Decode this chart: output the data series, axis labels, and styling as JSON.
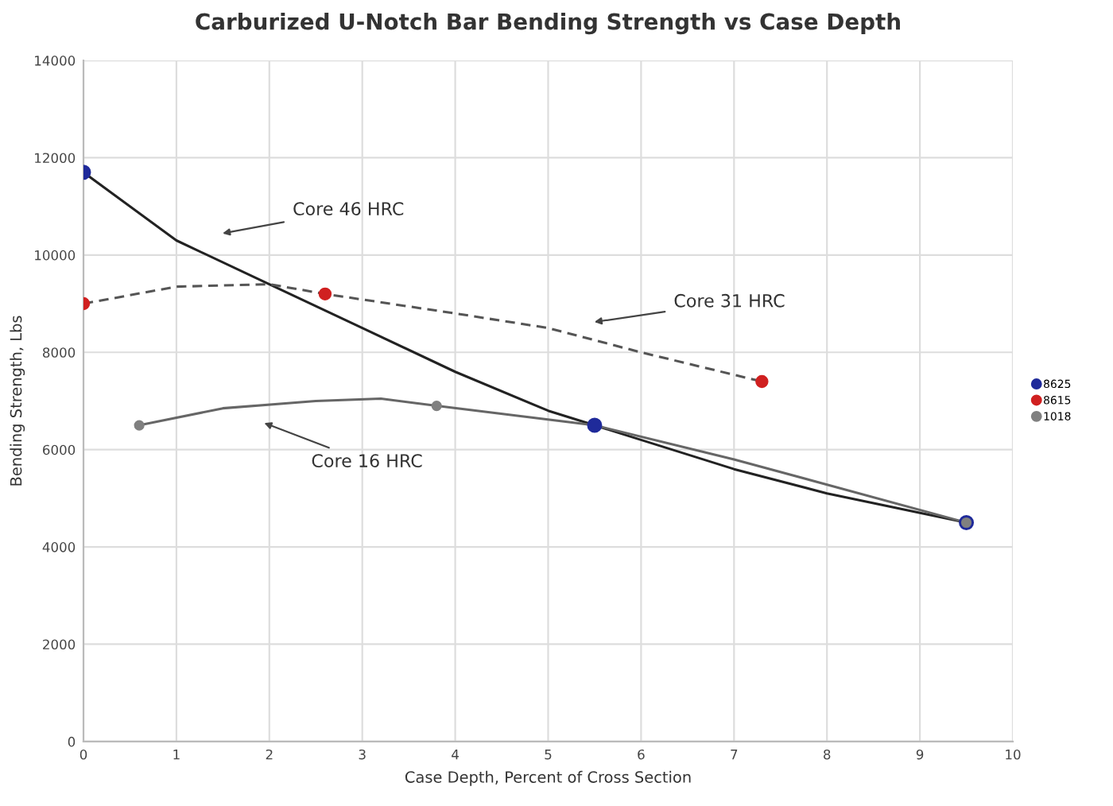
{
  "chart_data": {
    "type": "scatter",
    "title": "Carburized U-Notch Bar Bending Strength vs Case Depth",
    "xlabel": "Case Depth, Percent of Cross Section",
    "ylabel": "Bending Strength, Lbs",
    "xlim": [
      0,
      10
    ],
    "xticks": [
      0,
      1,
      2,
      3,
      4,
      5,
      6,
      7,
      8,
      9,
      10
    ],
    "ylim": [
      0,
      14000
    ],
    "yticks": [
      0,
      2000,
      4000,
      6000,
      8000,
      10000,
      12000,
      14000
    ],
    "grid": true,
    "legend": "right",
    "series": [
      {
        "name": "8625",
        "marker": "circle",
        "color": "#1f2a9a",
        "x": [
          0,
          5.5,
          9.5
        ],
        "values": [
          11700,
          6500,
          4500
        ]
      },
      {
        "name": "8615",
        "marker": "circle",
        "color": "#d02020",
        "x": [
          0,
          2.6,
          7.3
        ],
        "values": [
          9000,
          9200,
          7400
        ]
      },
      {
        "name": "1018",
        "marker": "circle",
        "color": "#808080",
        "x": [
          0.6,
          3.8,
          9.5
        ],
        "values": [
          6500,
          6900,
          4500
        ]
      },
      {
        "type": "line",
        "color": "#222222",
        "line_style": "solid",
        "x": [
          0,
          1,
          2,
          3,
          4,
          5,
          5.5,
          7,
          8,
          9.5
        ],
        "values": [
          11700,
          10300,
          9400,
          8500,
          7600,
          6800,
          6500,
          5600,
          5100,
          4500
        ]
      },
      {
        "type": "line",
        "color": "#555555",
        "line_style": "dashed",
        "x": [
          0,
          1,
          2,
          2.6,
          4,
          5,
          6,
          7.3
        ],
        "values": [
          9000,
          9350,
          9400,
          9200,
          8800,
          8500,
          8000,
          7400
        ]
      },
      {
        "type": "line",
        "color": "#666666",
        "line_style": "solid",
        "x": [
          0.6,
          1.5,
          2.5,
          3.2,
          3.8,
          5.5,
          7,
          9.5
        ],
        "values": [
          6500,
          6850,
          7000,
          7050,
          6900,
          6500,
          5800,
          4500
        ]
      }
    ],
    "annotations": [
      "Core 46 HRC",
      "Core 31 HRC",
      "Core 16 HRC"
    ]
  }
}
